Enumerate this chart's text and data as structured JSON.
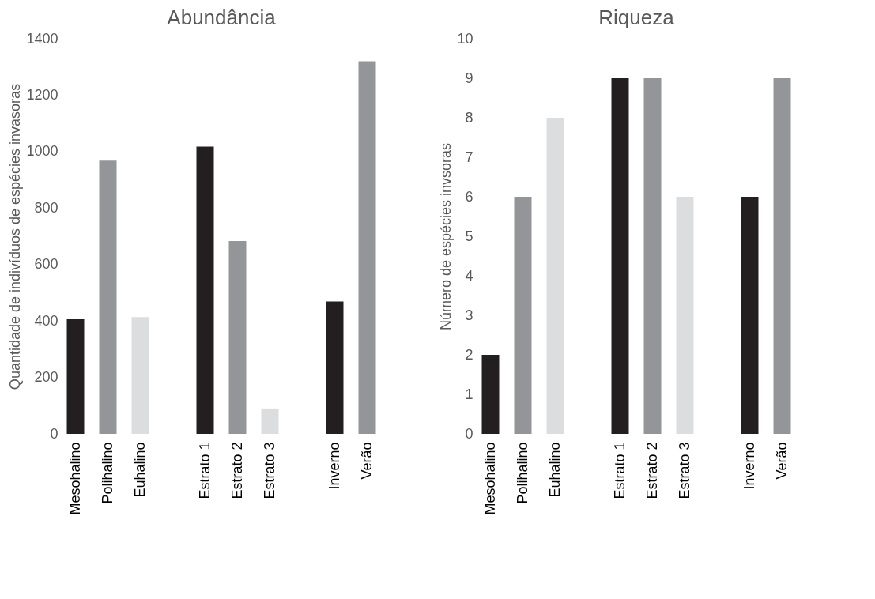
{
  "chart_data": [
    {
      "type": "bar",
      "title": "Abundância",
      "ylabel": "Quantidade de indivíduos de espécies invasoras",
      "categories": [
        "Mesohalino",
        "Polihalino",
        "Euhalino",
        null,
        "Estrato 1",
        "Estrato 2",
        "Estrato 3",
        null,
        "Inverno",
        "Verão"
      ],
      "values": [
        406,
        968,
        414,
        null,
        1018,
        683,
        90,
        null,
        469,
        1320
      ],
      "colors": [
        "#231f20",
        "#939598",
        "#dcddde",
        null,
        "#231f20",
        "#939598",
        "#dcddde",
        null,
        "#231f20",
        "#939598"
      ],
      "ylim": [
        0,
        1400
      ],
      "yticks": [
        0,
        200,
        400,
        600,
        800,
        1000,
        1200,
        1400
      ],
      "grid": false,
      "legend": false
    },
    {
      "type": "bar",
      "title": "Riqueza",
      "ylabel": "Número de espécies invsoras",
      "categories": [
        "Mesohalino",
        "Polihalino",
        "Euhalino",
        null,
        "Estrato 1",
        "Estrato 2",
        "Estrato 3",
        null,
        "Inverno",
        "Verão"
      ],
      "values": [
        2,
        6,
        8,
        null,
        9,
        9,
        6,
        null,
        6,
        9
      ],
      "colors": [
        "#231f20",
        "#939598",
        "#dcddde",
        null,
        "#231f20",
        "#939598",
        "#dcddde",
        null,
        "#231f20",
        "#939598"
      ],
      "ylim": [
        0,
        10
      ],
      "yticks": [
        0,
        1,
        2,
        3,
        4,
        5,
        6,
        7,
        8,
        9,
        10
      ],
      "grid": false,
      "legend": false
    }
  ]
}
